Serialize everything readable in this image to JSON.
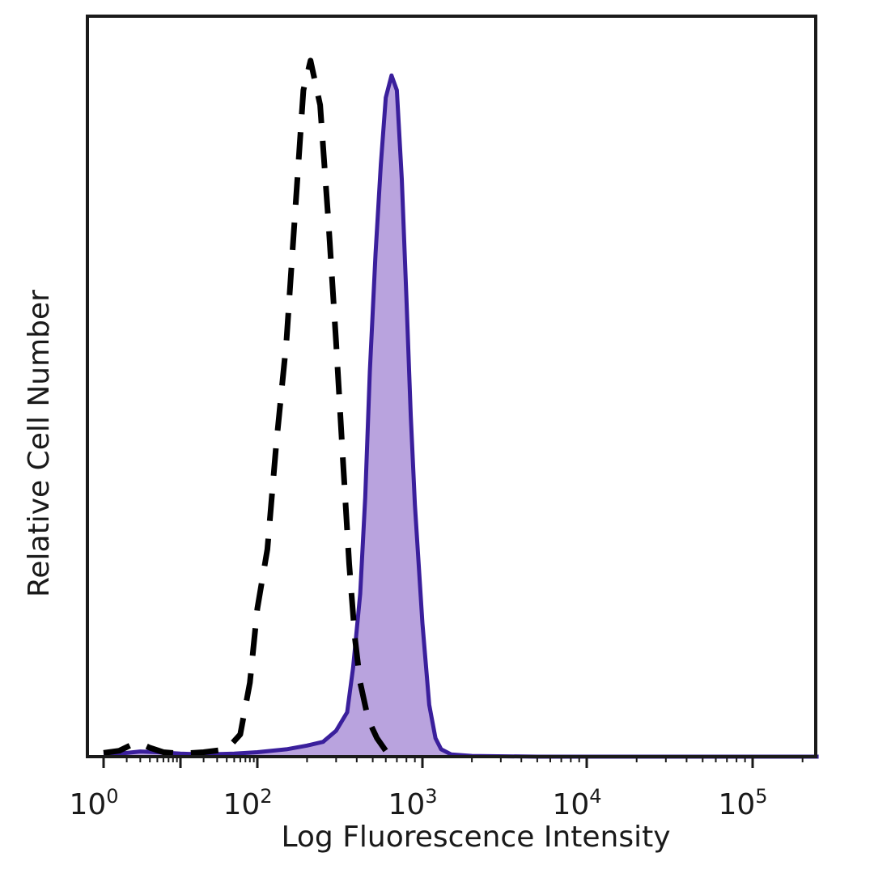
{
  "chart_data": {
    "type": "area",
    "xlabel": "Log Fluorescence Intensity",
    "ylabel": "Relative Cell Number",
    "xscale": "log",
    "xlim": [
      1,
      250000
    ],
    "ylim": [
      0,
      100
    ],
    "x_ticks": [
      {
        "value": 1,
        "base": "10",
        "exp": "0"
      },
      {
        "value": 100,
        "base": "10",
        "exp": "2"
      },
      {
        "value": 1000,
        "base": "10",
        "exp": "3"
      },
      {
        "value": 10000,
        "base": "10",
        "exp": "4"
      },
      {
        "value": 100000,
        "base": "10",
        "exp": "5"
      }
    ],
    "grid": false,
    "legend": "none",
    "series": [
      {
        "style": "dashed",
        "color": "#000000",
        "fill": "none",
        "x": [
          1,
          1.6,
          2.2,
          3,
          4,
          6,
          10,
          20,
          40,
          60,
          80,
          100,
          115,
          130,
          150,
          170,
          190,
          210,
          240,
          270,
          300,
          330,
          360,
          390,
          420,
          470,
          530,
          600,
          700
        ],
        "y": [
          0.5,
          0.8,
          1.5,
          1.8,
          1.2,
          0.6,
          0.4,
          0.6,
          1,
          3,
          10,
          20,
          28,
          42,
          56,
          74,
          90,
          94,
          88,
          72,
          56,
          40,
          26,
          16,
          10,
          5,
          2.5,
          0.8,
          0.2
        ]
      },
      {
        "style": "solid",
        "color": "#3a1f9c",
        "fill": "#b9a3de",
        "x": [
          1,
          2,
          3,
          5,
          10,
          20,
          50,
          100,
          150,
          200,
          250,
          300,
          350,
          380,
          420,
          450,
          480,
          520,
          560,
          600,
          650,
          700,
          750,
          800,
          850,
          900,
          1000,
          1100,
          1200,
          1300,
          1500,
          2000,
          5000,
          10000,
          100000,
          250000
        ],
        "y": [
          0.3,
          0.5,
          0.7,
          0.6,
          0.4,
          0.3,
          0.4,
          0.6,
          1,
          1.5,
          2,
          3.5,
          6,
          12,
          22,
          35,
          52,
          68,
          80,
          89,
          92,
          90,
          78,
          62,
          46,
          34,
          18,
          7,
          2.5,
          1,
          0.3,
          0.1,
          0,
          0,
          0,
          0
        ]
      }
    ]
  }
}
